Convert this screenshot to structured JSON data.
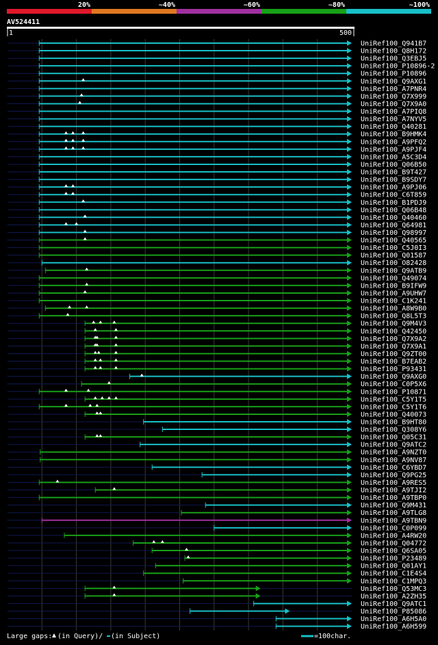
{
  "chart_data": {
    "type": "blast_alignment_overview",
    "query_id": "AV524411",
    "query_range": {
      "start_label": "1",
      "end_label": "500"
    },
    "color_scale": [
      {
        "label": "20%",
        "color": "#e0182a"
      },
      {
        "label": "~40%",
        "color": "#e07820"
      },
      {
        "label": "~60%",
        "color": "#a030a0"
      },
      {
        "label": "~80%",
        "color": "#18a018"
      },
      {
        "label": "~100%",
        "color": "#18c0c8"
      }
    ],
    "colors": {
      "identity_100": "#18c0c8",
      "identity_80": "#18a018",
      "identity_60": "#a030a0",
      "unaligned": "#101850",
      "grid": "#3a3a3a",
      "gap": "#ffffff"
    },
    "hits": [
      {
        "name": "UniRef100_Q941B7",
        "start": 92,
        "end": 1000,
        "identity": 100,
        "gaps": []
      },
      {
        "name": "UniRef100_Q8H172",
        "start": 92,
        "end": 1000,
        "identity": 100,
        "gaps": []
      },
      {
        "name": "UniRef100_Q3EBJ5",
        "start": 92,
        "end": 1000,
        "identity": 100,
        "gaps": []
      },
      {
        "name": "UniRef100_P10896-2",
        "start": 92,
        "end": 1000,
        "identity": 100,
        "gaps": []
      },
      {
        "name": "UniRef100_P10896",
        "start": 92,
        "end": 1000,
        "identity": 100,
        "gaps": []
      },
      {
        "name": "UniRef100_Q9AXG1",
        "start": 92,
        "end": 1000,
        "identity": 100,
        "gaps": [
          220
        ]
      },
      {
        "name": "UniRef100_A7PNR4",
        "start": 92,
        "end": 1000,
        "identity": 100,
        "gaps": []
      },
      {
        "name": "UniRef100_Q7X999",
        "start": 92,
        "end": 1000,
        "identity": 100,
        "gaps": [
          215
        ]
      },
      {
        "name": "UniRef100_Q7X9A0",
        "start": 92,
        "end": 1000,
        "identity": 100,
        "gaps": [
          210
        ]
      },
      {
        "name": "UniRef100_A7PIQ8",
        "start": 92,
        "end": 1000,
        "identity": 100,
        "gaps": []
      },
      {
        "name": "UniRef100_A7NYV5",
        "start": 92,
        "end": 1000,
        "identity": 100,
        "gaps": []
      },
      {
        "name": "UniRef100_Q40281",
        "start": 92,
        "end": 1000,
        "identity": 100,
        "gaps": []
      },
      {
        "name": "UniRef100_B9HMK4",
        "start": 92,
        "end": 1000,
        "identity": 100,
        "gaps": [
          170,
          190,
          220
        ]
      },
      {
        "name": "UniRef100_A9PFQ2",
        "start": 92,
        "end": 1000,
        "identity": 100,
        "gaps": [
          170,
          190,
          220
        ]
      },
      {
        "name": "UniRef100_A9PJF4",
        "start": 92,
        "end": 1000,
        "identity": 100,
        "gaps": [
          170,
          190,
          220
        ]
      },
      {
        "name": "UniRef100_A5C3D4",
        "start": 92,
        "end": 1000,
        "identity": 100,
        "gaps": []
      },
      {
        "name": "UniRef100_Q06B50",
        "start": 92,
        "end": 1000,
        "identity": 100,
        "gaps": []
      },
      {
        "name": "UniRef100_B9T427",
        "start": 92,
        "end": 1000,
        "identity": 100,
        "gaps": []
      },
      {
        "name": "UniRef100_B9SDY7",
        "start": 92,
        "end": 1000,
        "identity": 100,
        "gaps": []
      },
      {
        "name": "UniRef100_A9PJ06",
        "start": 92,
        "end": 1000,
        "identity": 100,
        "gaps": [
          170,
          190
        ]
      },
      {
        "name": "UniRef100_C6T859",
        "start": 92,
        "end": 1000,
        "identity": 100,
        "gaps": [
          170,
          190
        ]
      },
      {
        "name": "UniRef100_B1PDJ9",
        "start": 92,
        "end": 1000,
        "identity": 100,
        "gaps": [
          220
        ]
      },
      {
        "name": "UniRef100_Q06B48",
        "start": 92,
        "end": 1000,
        "identity": 100,
        "gaps": []
      },
      {
        "name": "UniRef100_Q40460",
        "start": 92,
        "end": 1000,
        "identity": 100,
        "gaps": [
          225
        ]
      },
      {
        "name": "UniRef100_Q64981",
        "start": 92,
        "end": 1000,
        "identity": 100,
        "gaps": [
          170,
          200
        ]
      },
      {
        "name": "UniRef100_Q98997",
        "start": 92,
        "end": 1000,
        "identity": 100,
        "gaps": [
          225
        ]
      },
      {
        "name": "UniRef100_Q40565",
        "start": 92,
        "end": 1000,
        "identity": 80,
        "gaps": [
          225
        ]
      },
      {
        "name": "UniRef100_C5J0I3",
        "start": 92,
        "end": 1000,
        "identity": 80,
        "gaps": []
      },
      {
        "name": "UniRef100_Q01587",
        "start": 92,
        "end": 1000,
        "identity": 80,
        "gaps": []
      },
      {
        "name": "UniRef100_O82428",
        "start": 100,
        "end": 1000,
        "identity": 100,
        "gaps": []
      },
      {
        "name": "UniRef100_Q9ATB9",
        "start": 110,
        "end": 1000,
        "identity": 80,
        "gaps": [
          230
        ]
      },
      {
        "name": "UniRef100_Q49074",
        "start": 92,
        "end": 1000,
        "identity": 80,
        "gaps": []
      },
      {
        "name": "UniRef100_B9IFW9",
        "start": 92,
        "end": 1000,
        "identity": 80,
        "gaps": [
          230
        ]
      },
      {
        "name": "UniRef100_A9UHW7",
        "start": 92,
        "end": 1000,
        "identity": 80,
        "gaps": [
          225
        ]
      },
      {
        "name": "UniRef100_C1K241",
        "start": 92,
        "end": 1000,
        "identity": 80,
        "gaps": []
      },
      {
        "name": "UniRef100_A8W9B0",
        "start": 110,
        "end": 1000,
        "identity": 80,
        "gaps": [
          180,
          230
        ]
      },
      {
        "name": "UniRef100_Q8L5T3",
        "start": 92,
        "end": 1000,
        "identity": 80,
        "gaps": [
          175
        ]
      },
      {
        "name": "UniRef100_Q9M4V3",
        "start": 225,
        "end": 1000,
        "identity": 80,
        "gaps": [
          250,
          270,
          310
        ]
      },
      {
        "name": "UniRef100_Q42450",
        "start": 225,
        "end": 1000,
        "identity": 80,
        "gaps": [
          255,
          315
        ]
      },
      {
        "name": "UniRef100_Q7X9A2",
        "start": 225,
        "end": 1000,
        "identity": 80,
        "gaps": [
          255,
          260,
          315
        ]
      },
      {
        "name": "UniRef100_Q7X9A1",
        "start": 225,
        "end": 1000,
        "identity": 80,
        "gaps": [
          255,
          260,
          315
        ]
      },
      {
        "name": "UniRef100_Q9ZT00",
        "start": 225,
        "end": 1000,
        "identity": 80,
        "gaps": [
          255,
          265,
          315
        ]
      },
      {
        "name": "UniRef100_B7EAB2",
        "start": 225,
        "end": 1000,
        "identity": 80,
        "gaps": [
          255,
          270,
          315
        ]
      },
      {
        "name": "UniRef100_P93431",
        "start": 225,
        "end": 1000,
        "identity": 80,
        "gaps": [
          255,
          270,
          315
        ]
      },
      {
        "name": "UniRef100_Q9AXG0",
        "start": 355,
        "end": 1000,
        "identity": 100,
        "gaps": [
          390
        ]
      },
      {
        "name": "UniRef100_C0P5X6",
        "start": 215,
        "end": 1000,
        "identity": 80,
        "gaps": [
          295
        ]
      },
      {
        "name": "UniRef100_P10871",
        "start": 92,
        "end": 1000,
        "identity": 80,
        "gaps": [
          170,
          235
        ]
      },
      {
        "name": "UniRef100_C5Y1T5",
        "start": 225,
        "end": 1000,
        "identity": 80,
        "gaps": [
          255,
          275,
          295,
          315
        ]
      },
      {
        "name": "UniRef100_C5Y1T6",
        "start": 92,
        "end": 1000,
        "identity": 80,
        "gaps": [
          170,
          240,
          260
        ]
      },
      {
        "name": "UniRef100_Q40073",
        "start": 225,
        "end": 1000,
        "identity": 80,
        "gaps": [
          260,
          270
        ]
      },
      {
        "name": "UniRef100_B9HT80",
        "start": 395,
        "end": 1000,
        "identity": 100,
        "gaps": []
      },
      {
        "name": "UniRef100_Q308Y6",
        "start": 450,
        "end": 1000,
        "identity": 100,
        "gaps": []
      },
      {
        "name": "UniRef100_Q05C31",
        "start": 225,
        "end": 1000,
        "identity": 80,
        "gaps": [
          260,
          270
        ]
      },
      {
        "name": "UniRef100_Q9ATC2",
        "start": 385,
        "end": 1000,
        "identity": 100,
        "gaps": []
      },
      {
        "name": "UniRef100_A9NZT0",
        "start": 95,
        "end": 1000,
        "identity": 80,
        "gaps": []
      },
      {
        "name": "UniRef100_A9NV87",
        "start": 95,
        "end": 1000,
        "identity": 80,
        "gaps": []
      },
      {
        "name": "UniRef100_C6YBD7",
        "start": 420,
        "end": 1000,
        "identity": 100,
        "gaps": []
      },
      {
        "name": "UniRef100_Q9PG25",
        "start": 565,
        "end": 1000,
        "identity": 100,
        "gaps": []
      },
      {
        "name": "UniRef100_A9RES5",
        "start": 92,
        "end": 1000,
        "identity": 80,
        "gaps": [
          145
        ]
      },
      {
        "name": "UniRef100_A9TJI2",
        "start": 255,
        "end": 1000,
        "identity": 80,
        "gaps": [
          310
        ]
      },
      {
        "name": "UniRef100_A9TBP0",
        "start": 92,
        "end": 1000,
        "identity": 80,
        "gaps": []
      },
      {
        "name": "UniRef100_Q9M431",
        "start": 575,
        "end": 1000,
        "identity": 100,
        "gaps": []
      },
      {
        "name": "UniRef100_A9TLG8",
        "start": 505,
        "end": 1000,
        "identity": 80,
        "gaps": []
      },
      {
        "name": "UniRef100_A9TBN9",
        "start": 100,
        "end": 1000,
        "identity": 60,
        "gaps": []
      },
      {
        "name": "UniRef100_C0P099",
        "start": 600,
        "end": 1000,
        "identity": 100,
        "gaps": []
      },
      {
        "name": "UniRef100_A4RW20",
        "start": 165,
        "end": 1000,
        "identity": 80,
        "gaps": []
      },
      {
        "name": "UniRef100_Q04772",
        "start": 365,
        "end": 1000,
        "identity": 80,
        "gaps": [
          425,
          450
        ]
      },
      {
        "name": "UniRef100_Q6SA05",
        "start": 420,
        "end": 1000,
        "identity": 80,
        "gaps": [
          520
        ]
      },
      {
        "name": "UniRef100_P23489",
        "start": 515,
        "end": 1000,
        "identity": 80,
        "gaps": [
          525
        ]
      },
      {
        "name": "UniRef100_Q01AY1",
        "start": 430,
        "end": 1000,
        "identity": 80,
        "gaps": []
      },
      {
        "name": "UniRef100_C1E4S4",
        "start": 395,
        "end": 1000,
        "identity": 80,
        "gaps": []
      },
      {
        "name": "UniRef100_C1MPQ3",
        "start": 510,
        "end": 1000,
        "identity": 80,
        "gaps": []
      },
      {
        "name": "UniRef100_Q53MC3",
        "start": 225,
        "end": 735,
        "identity": 80,
        "gaps": [
          310
        ]
      },
      {
        "name": "UniRef100_A2ZH35",
        "start": 225,
        "end": 735,
        "identity": 80,
        "gaps": [
          310
        ]
      },
      {
        "name": "UniRef100_Q9ATC1",
        "start": 715,
        "end": 1000,
        "identity": 100,
        "gaps": []
      },
      {
        "name": "UniRef100_P85086",
        "start": 530,
        "end": 820,
        "identity": 100,
        "gaps": []
      },
      {
        "name": "UniRef100_A6H5A0",
        "start": 780,
        "end": 1000,
        "identity": 100,
        "gaps": []
      },
      {
        "name": "UniRef100_A6H599",
        "start": 780,
        "end": 1000,
        "identity": 100,
        "gaps": []
      }
    ]
  },
  "footer": {
    "large_gaps_prefix": "Large gaps:",
    "in_query": "(in Query)/",
    "in_subject": "(in Subject)",
    "scale_label": "=100char."
  }
}
